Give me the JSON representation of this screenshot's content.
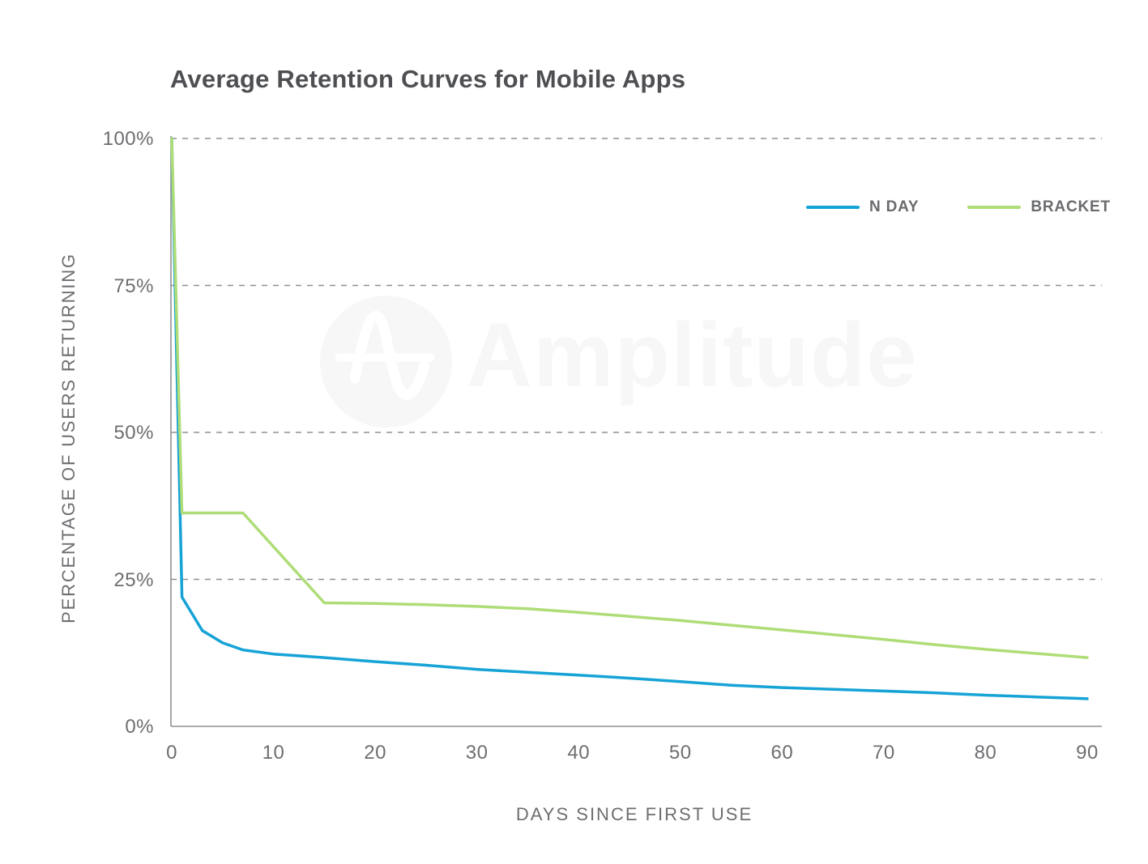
{
  "title": "Average Retention Curves for Mobile Apps",
  "watermark": {
    "text": "Amplitude",
    "logo": "amplitude-sine-wave-circle",
    "color": "#f7f7f7"
  },
  "legend": {
    "items": [
      {
        "label": "N DAY",
        "color": "#16a3d6"
      },
      {
        "label": "BRACKET",
        "color": "#aedd77"
      }
    ]
  },
  "colors": {
    "nday_line": "#16a3d6",
    "bracket_line": "#aedd77",
    "grid": "#8f9092",
    "axis": "#8f9092",
    "title_text": "#4e4f52",
    "label_text": "#6d6e71"
  },
  "chart_data": {
    "type": "line",
    "title": "Average Retention Curves for Mobile Apps",
    "xlabel": "DAYS SINCE FIRST USE",
    "ylabel": "PERCENTAGE OF USERS RETURNING",
    "xlim": [
      0,
      90
    ],
    "ylim": [
      0,
      100
    ],
    "xticks": [
      0,
      10,
      20,
      30,
      40,
      50,
      60,
      70,
      80,
      90
    ],
    "yticks": [
      {
        "value": 0,
        "label": "0%"
      },
      {
        "value": 25,
        "label": "25%"
      },
      {
        "value": 50,
        "label": "50%"
      },
      {
        "value": 75,
        "label": "75%"
      },
      {
        "value": 100,
        "label": "100%"
      }
    ],
    "grid": {
      "horizontal": true,
      "style": "dashed",
      "vertical": false
    },
    "legend_position": "top-right",
    "series": [
      {
        "name": "N DAY",
        "color": "#16a3d6",
        "points": [
          [
            0,
            100
          ],
          [
            1,
            22
          ],
          [
            3,
            16.3
          ],
          [
            5,
            14.2
          ],
          [
            7,
            13
          ],
          [
            10,
            12.3
          ],
          [
            15,
            11.7
          ],
          [
            20,
            11
          ],
          [
            25,
            10.4
          ],
          [
            30,
            9.7
          ],
          [
            35,
            9.2
          ],
          [
            40,
            8.7
          ],
          [
            45,
            8.2
          ],
          [
            50,
            7.6
          ],
          [
            55,
            7
          ],
          [
            60,
            6.6
          ],
          [
            65,
            6.3
          ],
          [
            70,
            6
          ],
          [
            75,
            5.7
          ],
          [
            80,
            5.3
          ],
          [
            85,
            5
          ],
          [
            90,
            4.7
          ]
        ]
      },
      {
        "name": "BRACKET",
        "color": "#aedd77",
        "points": [
          [
            0,
            100
          ],
          [
            1,
            36.3
          ],
          [
            7,
            36.3
          ],
          [
            15,
            21
          ],
          [
            20,
            20.9
          ],
          [
            25,
            20.7
          ],
          [
            30,
            20.4
          ],
          [
            35,
            20
          ],
          [
            40,
            19.4
          ],
          [
            45,
            18.7
          ],
          [
            50,
            18
          ],
          [
            55,
            17.2
          ],
          [
            60,
            16.4
          ],
          [
            65,
            15.6
          ],
          [
            70,
            14.8
          ],
          [
            75,
            13.9
          ],
          [
            80,
            13.1
          ],
          [
            85,
            12.4
          ],
          [
            90,
            11.7
          ]
        ]
      }
    ]
  }
}
